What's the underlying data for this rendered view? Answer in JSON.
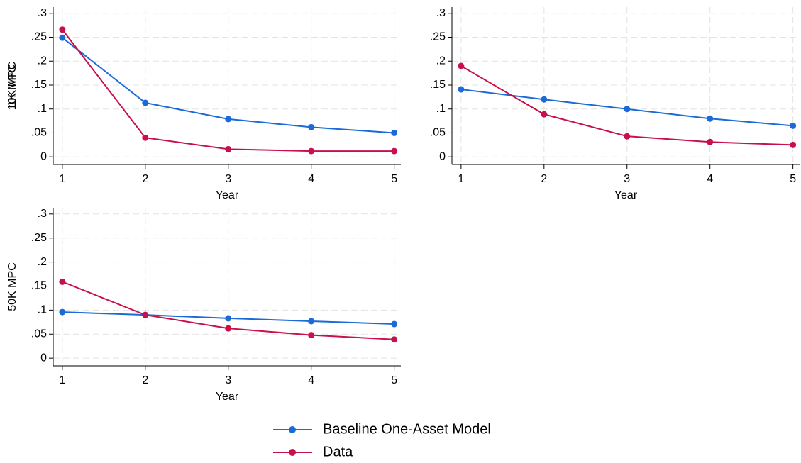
{
  "chart_data": [
    {
      "type": "line",
      "ylabel": "1K MPC",
      "xlabel": "Year",
      "x": [
        1,
        2,
        3,
        4,
        5
      ],
      "xlim": [
        0.89,
        5.08
      ],
      "xticks": [
        1,
        2,
        3,
        4,
        5
      ],
      "ylim": [
        -0.016,
        0.313
      ],
      "yticks": [
        0,
        {
          "value": 0.05,
          "label": ".05"
        },
        {
          "value": 0.1,
          "label": ".1"
        },
        {
          "value": 0.15,
          "label": ".15"
        },
        {
          "value": 0.2,
          "label": ".2"
        },
        {
          "value": 0.25,
          "label": ".25"
        },
        {
          "value": 0.3,
          "label": ".3"
        }
      ],
      "grid": true,
      "series": [
        {
          "name": "Baseline One-Asset Model",
          "color": "#1a6ad8",
          "values": [
            0.249,
            0.113,
            0.079,
            0.062,
            0.05
          ]
        },
        {
          "name": "Data",
          "color": "#c8104a",
          "values": [
            0.266,
            0.04,
            0.016,
            0.012,
            0.012
          ]
        }
      ]
    },
    {
      "type": "line",
      "ylabel": "10K MPC",
      "xlabel": "Year",
      "x": [
        1,
        2,
        3,
        4,
        5
      ],
      "xlim": [
        0.89,
        5.08
      ],
      "xticks": [
        1,
        2,
        3,
        4,
        5
      ],
      "ylim": [
        -0.016,
        0.313
      ],
      "yticks": [
        0,
        {
          "value": 0.05,
          "label": ".05"
        },
        {
          "value": 0.1,
          "label": ".1"
        },
        {
          "value": 0.15,
          "label": ".15"
        },
        {
          "value": 0.2,
          "label": ".2"
        },
        {
          "value": 0.25,
          "label": ".25"
        },
        {
          "value": 0.3,
          "label": ".3"
        }
      ],
      "grid": true,
      "series": [
        {
          "color": "#1a6ad8",
          "values": [
            0.141,
            0.12,
            0.1,
            0.08,
            0.065
          ]
        },
        {
          "color": "#c8104a",
          "values": [
            0.19,
            0.089,
            0.043,
            0.031,
            0.025
          ]
        }
      ]
    },
    {
      "type": "line",
      "ylabel": "50K MPC",
      "xlabel": "Year",
      "x": [
        1,
        2,
        3,
        4,
        5
      ],
      "xlim": [
        0.89,
        5.08
      ],
      "xticks": [
        1,
        2,
        3,
        4,
        5
      ],
      "ylim": [
        -0.016,
        0.313
      ],
      "yticks": [
        0,
        {
          "value": 0.05,
          "label": ".05"
        },
        {
          "value": 0.1,
          "label": ".1"
        },
        {
          "value": 0.15,
          "label": ".15"
        },
        {
          "value": 0.2,
          "label": ".2"
        },
        {
          "value": 0.25,
          "label": ".25"
        },
        {
          "value": 0.3,
          "label": ".3"
        }
      ],
      "grid": true,
      "series": [
        {
          "color": "#1a6ad8",
          "values": [
            0.096,
            0.09,
            0.083,
            0.077,
            0.071
          ]
        },
        {
          "color": "#c8104a",
          "values": [
            0.159,
            0.09,
            0.062,
            0.048,
            0.039
          ]
        }
      ]
    }
  ]
}
